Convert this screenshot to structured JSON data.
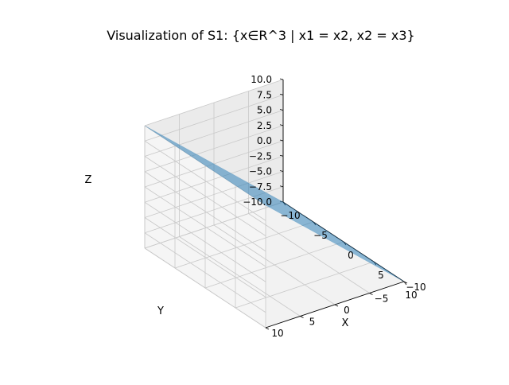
{
  "chart_data": {
    "type": "surface3d",
    "title": "Visualization of S1: {x∈R^3 | x1 = x2, x2 = x3}",
    "xlabel": "X",
    "ylabel": "Y",
    "zlabel": "Z",
    "xlim": [
      -10,
      10
    ],
    "ylim": [
      -10,
      10
    ],
    "zlim": [
      -10,
      10
    ],
    "xticks": [
      -10,
      -5,
      0,
      5,
      10
    ],
    "yticks": [
      -10,
      -5,
      0,
      5,
      10
    ],
    "zticks": [
      -10.0,
      -7.5,
      -5.0,
      -2.5,
      0.0,
      2.5,
      5.0,
      7.5,
      10.0
    ],
    "xtick_labels": [
      "−10",
      "−5",
      "0",
      "5",
      "10"
    ],
    "ytick_labels": [
      "−10",
      "−5",
      "0",
      "5",
      "10"
    ],
    "ztick_labels": [
      "−10.0",
      "−7.5",
      "−5.0",
      "−2.5",
      "0.0",
      "2.5",
      "5.0",
      "7.5",
      "10.0"
    ],
    "grid": true,
    "surface": {
      "corners": [
        {
          "x": -10,
          "y": -10,
          "z": -10
        },
        {
          "x": 10,
          "y": -10,
          "z": -10
        },
        {
          "x": 10,
          "y": 10,
          "z": 10
        },
        {
          "x": -10,
          "y": 10,
          "z": 10
        }
      ],
      "color": "#1f77b4",
      "alpha": 0.5
    }
  }
}
